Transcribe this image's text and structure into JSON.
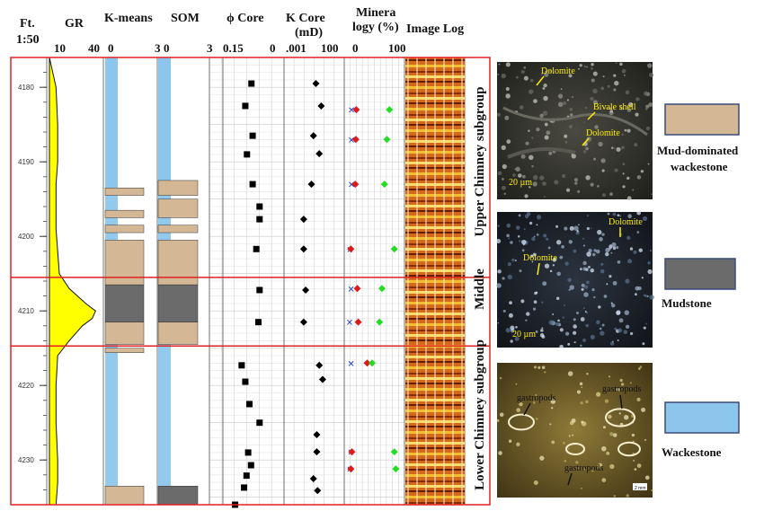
{
  "headers": {
    "ft": "Ft.",
    "scale": "1:50",
    "gr": "GR",
    "kmeans": "K-means",
    "som": "SOM",
    "phi": "ϕ Core",
    "kcore": "K Core",
    "kcore_unit": "(mD)",
    "mineral_1": "Minera",
    "mineral_2": "logy (%)",
    "image_log": "Image Log"
  },
  "axis_labels": {
    "gr_min": "10",
    "gr_max": "40",
    "kmeans_min": "0",
    "kmeans_max": "3",
    "som_min": "0",
    "som_max": "3",
    "phi_min": "0.15",
    "phi_max": "0",
    "k_min": ".001",
    "k_max": "100",
    "min_min": "0",
    "min_max": "100"
  },
  "depth_ticks": [
    "4180",
    "4190",
    "4200",
    "4210",
    "4220",
    "4230"
  ],
  "zones": [
    {
      "name": "Upper Chimney subgroup"
    },
    {
      "name": "Middle"
    },
    {
      "name": "Lower Chimney subgroup"
    }
  ],
  "micro_photos": [
    {
      "labels": [
        "Dolomite",
        "Bivale shell",
        "Dolomite",
        "20 µm"
      ]
    },
    {
      "labels": [
        "Dolomite",
        "Dolomite",
        "20 µm"
      ]
    },
    {
      "labels": [
        "gastropods",
        "gastropods",
        "gastropods",
        "2 mm"
      ]
    }
  ],
  "legend": [
    {
      "label_1": "Mud-dominated",
      "label_2": "wackestone",
      "color": "#d4b895"
    },
    {
      "label_1": "Mudstone",
      "label_2": "",
      "color": "#6b6b6b"
    },
    {
      "label_1": "Wackestone",
      "label_2": "",
      "color": "#8cc6ec"
    }
  ],
  "colors": {
    "gr_fill": "#ffff00",
    "wackestone": "#8cc6ec",
    "mudstone": "#6b6b6b",
    "mud_wackestone": "#d4b895",
    "zone_line": "#e02020"
  },
  "chart_data": {
    "type": "well_log",
    "depth_range": [
      4176,
      4236
    ],
    "gr_curve": [
      [
        4177,
        11
      ],
      [
        4180,
        14
      ],
      [
        4185,
        15
      ],
      [
        4190,
        15
      ],
      [
        4193,
        14
      ],
      [
        4196,
        14
      ],
      [
        4199,
        14
      ],
      [
        4202,
        15
      ],
      [
        4205,
        16
      ],
      [
        4207,
        22
      ],
      [
        4209,
        32
      ],
      [
        4210,
        38
      ],
      [
        4211,
        36
      ],
      [
        4212,
        30
      ],
      [
        4214,
        22
      ],
      [
        4216,
        15
      ],
      [
        4220,
        14
      ],
      [
        4225,
        14
      ],
      [
        4230,
        15
      ],
      [
        4233,
        15
      ],
      [
        4236,
        14
      ]
    ],
    "lithology_kmeans": [
      {
        "top": 4176,
        "base": 4193.5,
        "class": "wackestone"
      },
      {
        "top": 4193.5,
        "base": 4194.5,
        "class": "mud_wackestone"
      },
      {
        "top": 4196.5,
        "base": 4197.5,
        "class": "mud_wackestone"
      },
      {
        "top": 4198.5,
        "base": 4199.5,
        "class": "mud_wackestone"
      },
      {
        "top": 4200.5,
        "base": 4206.5,
        "class": "mud_wackestone"
      },
      {
        "top": 4206.5,
        "base": 4211.5,
        "class": "mudstone"
      },
      {
        "top": 4211.5,
        "base": 4214.5,
        "class": "mud_wackestone"
      },
      {
        "top": 4215,
        "base": 4215.6,
        "class": "mud_wackestone"
      },
      {
        "top": 4233.5,
        "base": 4236,
        "class": "mud_wackestone"
      }
    ],
    "lithology_som": [
      {
        "top": 4176,
        "base": 4192.5,
        "class": "wackestone"
      },
      {
        "top": 4192.5,
        "base": 4194.5,
        "class": "mud_wackestone"
      },
      {
        "top": 4195,
        "base": 4197.5,
        "class": "mud_wackestone"
      },
      {
        "top": 4198.5,
        "base": 4199.5,
        "class": "mud_wackestone"
      },
      {
        "top": 4200.5,
        "base": 4206.5,
        "class": "mud_wackestone"
      },
      {
        "top": 4206.5,
        "base": 4211.5,
        "class": "mudstone"
      },
      {
        "top": 4211.5,
        "base": 4214.5,
        "class": "mud_wackestone"
      },
      {
        "top": 4233.5,
        "base": 4236,
        "class": "mudstone"
      }
    ],
    "phi_core": [
      [
        4179.5,
        0.08
      ],
      [
        4182.5,
        0.095
      ],
      [
        4186.5,
        0.077
      ],
      [
        4189,
        0.091
      ],
      [
        4193,
        0.077
      ],
      [
        4196,
        0.06
      ],
      [
        4197.7,
        0.06
      ],
      [
        4201.7,
        0.068
      ],
      [
        4207.2,
        0.06
      ],
      [
        4211.5,
        0.063
      ],
      [
        4217.3,
        0.104
      ],
      [
        4219.5,
        0.095
      ],
      [
        4222.5,
        0.085
      ],
      [
        4225,
        0.06
      ],
      [
        4229,
        0.088
      ],
      [
        4230.7,
        0.081
      ],
      [
        4232.1,
        0.092
      ],
      [
        4233.7,
        0.098
      ],
      [
        4236,
        0.12
      ]
    ],
    "k_core": [
      [
        4179.5,
        0.5
      ],
      [
        4182.5,
        1.5
      ],
      [
        4186.5,
        0.3
      ],
      [
        4188.9,
        1.0
      ],
      [
        4193,
        0.2
      ],
      [
        4197.7,
        0.04
      ],
      [
        4201.7,
        0.04
      ],
      [
        4207.2,
        0.06
      ],
      [
        4211.5,
        0.04
      ],
      [
        4217.3,
        1.0
      ],
      [
        4219.2,
        2.0
      ],
      [
        4226.6,
        0.6
      ],
      [
        4228.9,
        0.6
      ],
      [
        4232.5,
        0.3
      ],
      [
        4234.1,
        0.7
      ]
    ],
    "mineralogy": [
      [
        4183,
        -2,
        8,
        75
      ],
      [
        4187,
        -2,
        7,
        70
      ],
      [
        4193,
        -2,
        6,
        65
      ],
      [
        4201.7,
        -5,
        -3,
        85
      ],
      [
        4207,
        -3,
        10,
        60
      ],
      [
        4211.5,
        -6,
        12,
        55
      ],
      [
        4217,
        -3,
        30,
        40
      ],
      [
        4228.9,
        -3,
        -1,
        85
      ],
      [
        4231.2,
        -5,
        -3,
        88
      ]
    ]
  }
}
